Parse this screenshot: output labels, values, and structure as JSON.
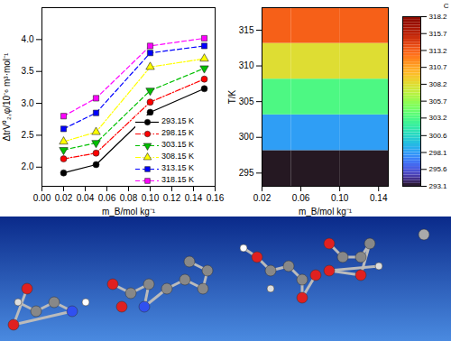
{
  "chart_data": [
    {
      "type": "line",
      "xlabel": "m_B/mol kg⁻¹",
      "ylabel": "ΔtrV⁰₂,φ/10⁻⁶ m³·mol⁻¹",
      "x": [
        0.02,
        0.05,
        0.1,
        0.15
      ],
      "series": [
        {
          "name": "293.15 K",
          "color": "#000000",
          "marker": "circle",
          "line_style": "solid",
          "values": [
            1.91,
            2.04,
            2.86,
            3.23
          ]
        },
        {
          "name": "298.15 K",
          "color": "#ff0000",
          "marker": "circle",
          "line_style": "dashdot",
          "values": [
            2.13,
            2.22,
            3.02,
            3.38
          ]
        },
        {
          "name": "303.15 K",
          "color": "#00c000",
          "marker": "triangle-down",
          "line_style": "dashed",
          "values": [
            2.27,
            2.38,
            3.2,
            3.55
          ]
        },
        {
          "name": "308.15 K",
          "color": "#ffff00",
          "marker": "triangle",
          "line_style": "dashdot",
          "values": [
            2.4,
            2.55,
            3.57,
            3.7
          ]
        },
        {
          "name": "313.15 K",
          "color": "#0000ff",
          "marker": "square",
          "line_style": "dashed",
          "values": [
            2.6,
            2.85,
            3.79,
            3.9
          ]
        },
        {
          "name": "318.15 K",
          "color": "#ff00ff",
          "marker": "square",
          "line_style": "dashed",
          "values": [
            2.8,
            3.08,
            3.9,
            4.02
          ]
        }
      ],
      "xlim": [
        0,
        0.16
      ],
      "xticks": [
        {
          "value": 0,
          "label": "0.00"
        },
        {
          "value": 0.02,
          "label": "0.02"
        },
        {
          "value": 0.04,
          "label": "0.04"
        },
        {
          "value": 0.06,
          "label": "0.06"
        },
        {
          "value": 0.08,
          "label": "0.08"
        },
        {
          "value": 0.1,
          "label": "0.10"
        },
        {
          "value": 0.12,
          "label": "0.12"
        },
        {
          "value": 0.14,
          "label": "0.14"
        },
        {
          "value": 0.16,
          "label": "0.16"
        }
      ],
      "ylim": [
        1.7,
        4.5
      ],
      "yticks": [
        {
          "value": 2,
          "label": "2.0"
        },
        {
          "value": 2.5,
          "label": "2.5"
        },
        {
          "value": 3,
          "label": "3.0"
        },
        {
          "value": 3.5,
          "label": "3.5"
        },
        {
          "value": 4,
          "label": "4.0"
        }
      ],
      "legend": "lower right"
    },
    {
      "type": "surface",
      "xlabel": "m_B/mol kg⁻¹",
      "ylabel": "T/K",
      "x": [
        0.02,
        0.05,
        0.1,
        0.15
      ],
      "y": [
        293.15,
        298.15,
        303.15,
        308.15,
        313.15,
        318.15
      ],
      "cells": [
        [
          293.15,
          293.15,
          293.15
        ],
        [
          298.15,
          298.15,
          298.15
        ],
        [
          303.15,
          303.15,
          303.15
        ],
        [
          308.15,
          308.15,
          308.15
        ],
        [
          313.15,
          313.15,
          313.15
        ]
      ],
      "xlim": [
        0.02,
        0.15
      ],
      "xticks": [
        {
          "value": 0.02,
          "label": "0.02"
        },
        {
          "value": 0.06,
          "label": "0.06"
        },
        {
          "value": 0.1,
          "label": "0.10"
        },
        {
          "value": 0.14,
          "label": "0.14"
        }
      ],
      "ylim": [
        293.15,
        318.15
      ],
      "yticks": [
        295,
        300,
        305,
        310,
        315
      ],
      "colorbar_title": "C",
      "colorbar_range": [
        293.1,
        318.2
      ],
      "colorbar_ticks": [
        293.1,
        295.6,
        298.1,
        300.6,
        303.2,
        305.7,
        308.2,
        310.7,
        313.2,
        315.7,
        318.2
      ]
    }
  ]
}
